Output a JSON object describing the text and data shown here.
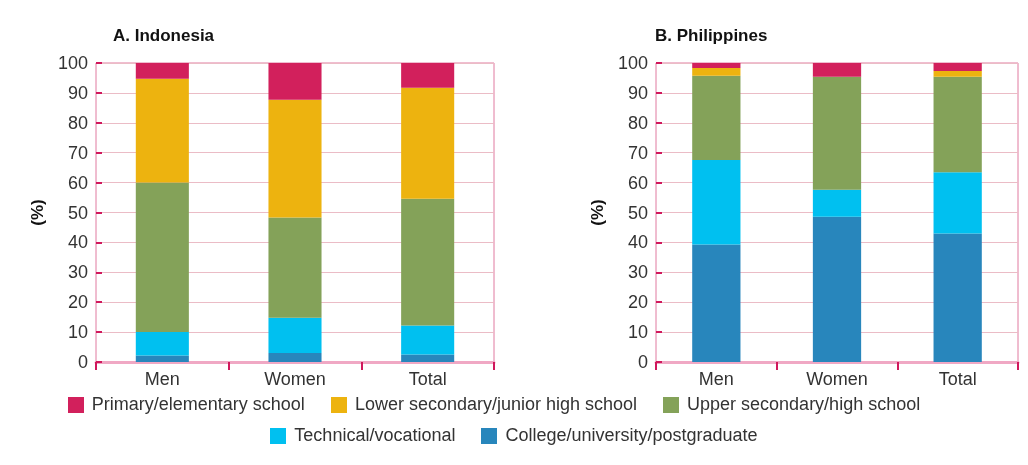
{
  "chart_data": [
    {
      "type": "bar",
      "title": "A. Indonesia",
      "ylabel": "(%)",
      "categories": [
        "Men",
        "Women",
        "Total"
      ],
      "stacked": true,
      "ylim": [
        0,
        100
      ],
      "yticks": [
        0,
        10,
        20,
        30,
        40,
        50,
        60,
        70,
        80,
        90,
        100
      ],
      "grid": "y",
      "legend": "bottom",
      "series": [
        {
          "name": "College/university/postgraduate",
          "color": "#2886bc",
          "values": [
            2.2,
            3,
            2.5
          ]
        },
        {
          "name": "Technical/vocational",
          "color": "#00c0f0",
          "values": [
            7.8,
            11.8,
            9.7
          ]
        },
        {
          "name": "Upper secondary/high school",
          "color": "#84a259",
          "values": [
            50,
            33.5,
            42.4
          ]
        },
        {
          "name": "Lower secondary/junior high school",
          "color": "#edb30f",
          "values": [
            34.7,
            39.4,
            37.1
          ]
        },
        {
          "name": "Primary/elementary school",
          "color": "#d2205c",
          "values": [
            5.3,
            12.3,
            8.3
          ]
        }
      ]
    },
    {
      "type": "bar",
      "title": "B. Philippines",
      "ylabel": "(%)",
      "categories": [
        "Men",
        "Women",
        "Total"
      ],
      "stacked": true,
      "ylim": [
        0,
        100
      ],
      "yticks": [
        0,
        10,
        20,
        30,
        40,
        50,
        60,
        70,
        80,
        90,
        100
      ],
      "grid": "y",
      "series": [
        {
          "color": "#2886bc",
          "values": [
            39.3,
            48.6,
            43
          ]
        },
        {
          "color": "#00c0f0",
          "values": [
            28.3,
            9,
            20.5
          ]
        },
        {
          "color": "#84a259",
          "values": [
            28.1,
            37.8,
            31.9
          ]
        },
        {
          "color": "#edb30f",
          "values": [
            2.6,
            0,
            1.9
          ]
        },
        {
          "color": "#d2205c",
          "values": [
            1.7,
            4.6,
            2.7
          ]
        }
      ]
    }
  ]
}
